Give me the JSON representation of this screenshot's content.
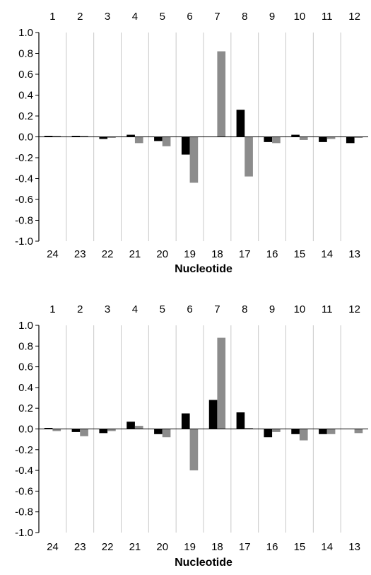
{
  "colors": {
    "series_a": "#000000",
    "series_b": "#8c8c8c",
    "grid": "#c8c8c8"
  },
  "chart_data": [
    {
      "type": "bar",
      "top_categories": [
        "1",
        "2",
        "3",
        "4",
        "5",
        "6",
        "7",
        "8",
        "9",
        "10",
        "11",
        "12"
      ],
      "bottom_categories": [
        "24",
        "23",
        "22",
        "21",
        "20",
        "19",
        "18",
        "17",
        "16",
        "15",
        "14",
        "13"
      ],
      "xlabel": "Nucleotide",
      "ylim": [
        -1.0,
        1.0
      ],
      "yticks": [
        "1.0",
        "0.8",
        "0.6",
        "0.4",
        "0.2",
        "0.0",
        "-0.2",
        "-0.4",
        "-0.6",
        "-0.8",
        "-1.0"
      ],
      "grid": "vertical",
      "series": [
        {
          "values": [
            0.01,
            0.01,
            -0.02,
            0.02,
            -0.04,
            -0.17,
            0.0,
            0.26,
            -0.05,
            0.02,
            -0.05,
            -0.06
          ]
        },
        {
          "values": [
            0.01,
            0.01,
            -0.01,
            -0.06,
            -0.09,
            -0.44,
            0.82,
            -0.38,
            -0.06,
            -0.03,
            -0.02,
            -0.01
          ]
        }
      ]
    },
    {
      "type": "bar",
      "top_categories": [
        "1",
        "2",
        "3",
        "4",
        "5",
        "6",
        "7",
        "8",
        "9",
        "10",
        "11",
        "12"
      ],
      "bottom_categories": [
        "24",
        "23",
        "22",
        "21",
        "20",
        "19",
        "18",
        "17",
        "16",
        "15",
        "14",
        "13"
      ],
      "xlabel": "Nucleotide",
      "ylim": [
        -1.0,
        1.0
      ],
      "yticks": [
        "1.0",
        "0.8",
        "0.6",
        "0.4",
        "0.2",
        "0.0",
        "-0.2",
        "-0.4",
        "-0.6",
        "-0.8",
        "-1.0"
      ],
      "grid": "vertical",
      "series": [
        {
          "values": [
            0.01,
            -0.03,
            -0.04,
            0.07,
            -0.05,
            0.15,
            0.28,
            0.16,
            -0.08,
            -0.05,
            -0.05,
            0.0
          ]
        },
        {
          "values": [
            -0.02,
            -0.07,
            -0.02,
            0.03,
            -0.08,
            -0.4,
            0.88,
            0.01,
            -0.03,
            -0.11,
            -0.05,
            -0.04
          ]
        }
      ]
    }
  ]
}
